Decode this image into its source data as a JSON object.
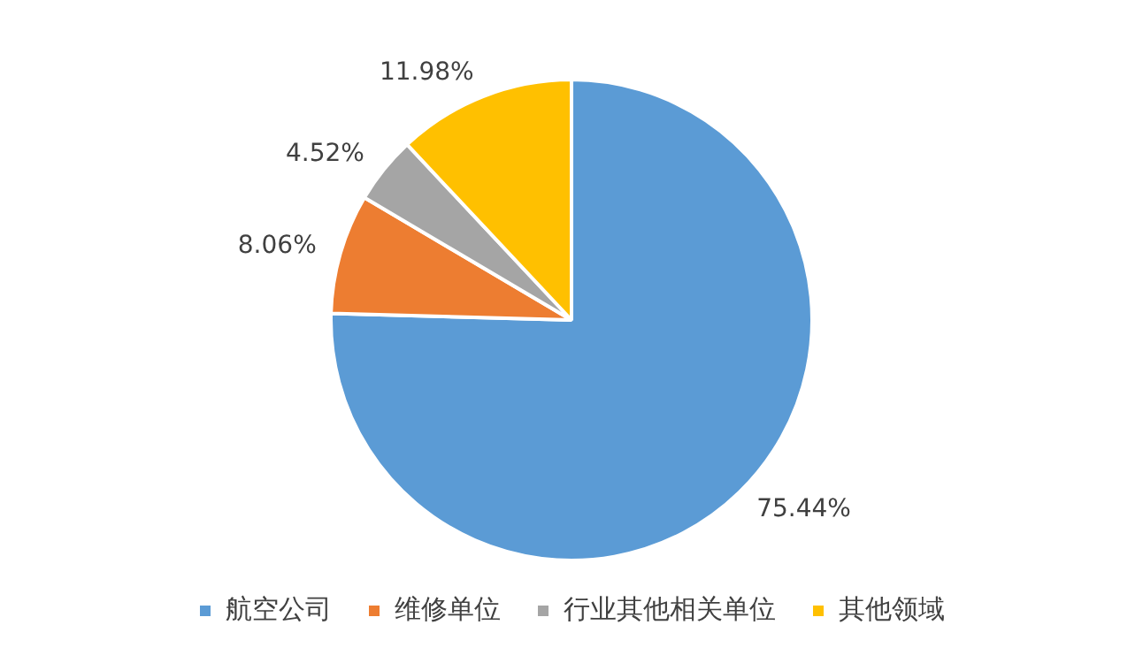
{
  "chart_data": {
    "type": "pie",
    "categories": [
      "航空公司",
      "维修单位",
      "行业其他相关单位",
      "其他领域"
    ],
    "values": [
      75.44,
      8.06,
      4.52,
      11.98
    ],
    "colors": [
      "#5b9bd5",
      "#ed7d31",
      "#a5a5a5",
      "#ffc000"
    ],
    "value_labels": [
      "75.44%",
      "8.06%",
      "4.52%",
      "11.98%"
    ],
    "legend": "bottom"
  }
}
